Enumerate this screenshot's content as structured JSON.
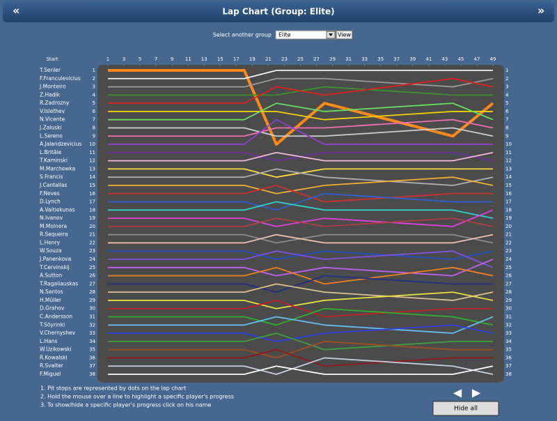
{
  "header": {
    "title": "Lap Chart (Group: Elite)",
    "prev": "«",
    "next": "»"
  },
  "selector": {
    "label": "Select another group",
    "value": "Elite",
    "button": "View"
  },
  "chart_data": {
    "type": "line",
    "start_label": "Start",
    "xticks": [
      1,
      3,
      5,
      7,
      9,
      11,
      13,
      15,
      17,
      19,
      21,
      23,
      25,
      27,
      29,
      31,
      33,
      35,
      37,
      39,
      41,
      43,
      45,
      47,
      49
    ],
    "xlim": [
      1,
      49
    ],
    "ylim": [
      1,
      38
    ],
    "yticks": [
      1,
      2,
      3,
      4,
      5,
      6,
      7,
      8,
      9,
      10,
      11,
      12,
      13,
      14,
      15,
      16,
      17,
      18,
      19,
      20,
      21,
      22,
      23,
      24,
      25,
      26,
      27,
      28,
      29,
      30,
      31,
      32,
      33,
      34,
      35,
      36,
      37,
      38
    ],
    "x": [
      1,
      18,
      22,
      28,
      44,
      49
    ],
    "series": [
      {
        "name": "T.Senler",
        "color": "#ff8a1a",
        "values": [
          1,
          1,
          10,
          5,
          9,
          5
        ]
      },
      {
        "name": "F.Franculevicius",
        "color": "#f2f2f2",
        "values": [
          2,
          2,
          1,
          1,
          1,
          1
        ]
      },
      {
        "name": "J.Monteiro",
        "color": "#9a9a9a",
        "values": [
          3,
          3,
          2,
          2,
          3,
          2
        ]
      },
      {
        "name": "Z.Hadik",
        "color": "#3e8f2e",
        "values": [
          4,
          4,
          4,
          3,
          4,
          4
        ]
      },
      {
        "name": "R.Zadrozny",
        "color": "#e02020",
        "values": [
          5,
          5,
          3,
          4,
          2,
          3
        ]
      },
      {
        "name": "V.Islethev",
        "color": "#f0d000",
        "values": [
          6,
          6,
          6,
          7,
          6,
          6
        ]
      },
      {
        "name": "N.Vicente",
        "color": "#66e060",
        "values": [
          7,
          7,
          5,
          6,
          5,
          7
        ]
      },
      {
        "name": "J.Zaluski",
        "color": "#cfcfcf",
        "values": [
          8,
          8,
          9,
          9,
          8,
          9
        ]
      },
      {
        "name": "L.Sereno",
        "color": "#f070b0",
        "values": [
          9,
          9,
          8,
          8,
          7,
          8
        ]
      },
      {
        "name": "A.Jalandzevicius",
        "color": "#9040d0",
        "values": [
          10,
          10,
          7,
          10,
          10,
          10
        ]
      },
      {
        "name": "L.Britāle",
        "color": "#6a30a0",
        "values": [
          11,
          11,
          12,
          11,
          11,
          12
        ]
      },
      {
        "name": "T.Kaminski",
        "color": "#f5b8d8",
        "values": [
          12,
          12,
          11,
          12,
          12,
          11
        ]
      },
      {
        "name": "M.Marchewka",
        "color": "#ffe040",
        "values": [
          13,
          13,
          14,
          13,
          13,
          13
        ]
      },
      {
        "name": "S.Francis",
        "color": "#b0b0b0",
        "values": [
          14,
          14,
          13,
          14,
          15,
          14
        ]
      },
      {
        "name": "J.Cantallas",
        "color": "#f0b030",
        "values": [
          15,
          15,
          16,
          15,
          14,
          15
        ]
      },
      {
        "name": "F.Neves",
        "color": "#d03030",
        "values": [
          16,
          16,
          15,
          17,
          16,
          16
        ]
      },
      {
        "name": "D.Lynch",
        "color": "#3060d0",
        "values": [
          17,
          17,
          18,
          16,
          17,
          17
        ]
      },
      {
        "name": "A.Vaitiekunas",
        "color": "#30d0d0",
        "values": [
          18,
          18,
          17,
          18,
          18,
          19
        ]
      },
      {
        "name": "N.Ivanov",
        "color": "#e040e0",
        "values": [
          19,
          19,
          20,
          19,
          20,
          18
        ]
      },
      {
        "name": "M.Molnera",
        "color": "#b04040",
        "values": [
          20,
          20,
          19,
          20,
          19,
          20
        ]
      },
      {
        "name": "R.Sequeira",
        "color": "#8a8a8a",
        "values": [
          21,
          21,
          22,
          21,
          21,
          22
        ]
      },
      {
        "name": "L.Henry",
        "color": "#f0c0b0",
        "values": [
          22,
          22,
          21,
          22,
          22,
          21
        ]
      },
      {
        "name": "W.Souza",
        "color": "#2050c0",
        "values": [
          23,
          23,
          24,
          23,
          24,
          23
        ]
      },
      {
        "name": "J.Panenkova",
        "color": "#8050e0",
        "values": [
          24,
          24,
          23,
          24,
          23,
          25
        ]
      },
      {
        "name": "T.Cervinskij",
        "color": "#c060f0",
        "values": [
          25,
          25,
          26,
          25,
          26,
          24
        ]
      },
      {
        "name": "A.Sutton",
        "color": "#f08020",
        "values": [
          26,
          26,
          25,
          27,
          25,
          26
        ]
      },
      {
        "name": "T.Ragaliauskas",
        "color": "#203080",
        "values": [
          27,
          27,
          28,
          26,
          27,
          27
        ]
      },
      {
        "name": "N.Santos",
        "color": "#e0c090",
        "values": [
          28,
          28,
          27,
          28,
          29,
          28
        ]
      },
      {
        "name": "H.Müller",
        "color": "#e8e040",
        "values": [
          29,
          29,
          30,
          29,
          28,
          29
        ]
      },
      {
        "name": "D.Grahov",
        "color": "#c02020",
        "values": [
          30,
          30,
          29,
          31,
          30,
          30
        ]
      },
      {
        "name": "C.Andersson",
        "color": "#30b030",
        "values": [
          31,
          31,
          32,
          30,
          31,
          32
        ]
      },
      {
        "name": "T.Söyrinki",
        "color": "#60c0f0",
        "values": [
          32,
          32,
          31,
          32,
          33,
          31
        ]
      },
      {
        "name": "V.Chernyshev",
        "color": "#3040e0",
        "values": [
          33,
          33,
          34,
          33,
          32,
          33
        ]
      },
      {
        "name": "L.Hans",
        "color": "#40a040",
        "values": [
          34,
          34,
          33,
          35,
          34,
          34
        ]
      },
      {
        "name": "W.Uzikowski",
        "color": "#a05020",
        "values": [
          35,
          35,
          36,
          34,
          35,
          35
        ]
      },
      {
        "name": "R.Kowalski",
        "color": "#901818",
        "values": [
          36,
          36,
          35,
          37,
          36,
          36
        ]
      },
      {
        "name": "R.Svalter",
        "color": "#c8d0e0",
        "values": [
          37,
          37,
          38,
          36,
          37,
          38
        ]
      },
      {
        "name": "F.Miguel",
        "color": "#ffffff",
        "values": [
          38,
          38,
          37,
          38,
          38,
          37
        ]
      }
    ]
  },
  "notes": [
    "1. Pit stops are represented by dots on the lap chart",
    "2. Hold the mouse over a line to highlight a specific player's progress",
    "3. To show/hide a specific player's progress click on his name"
  ],
  "nav": {
    "prev": "◀",
    "next": "▶"
  },
  "hide_button": "Hide all"
}
